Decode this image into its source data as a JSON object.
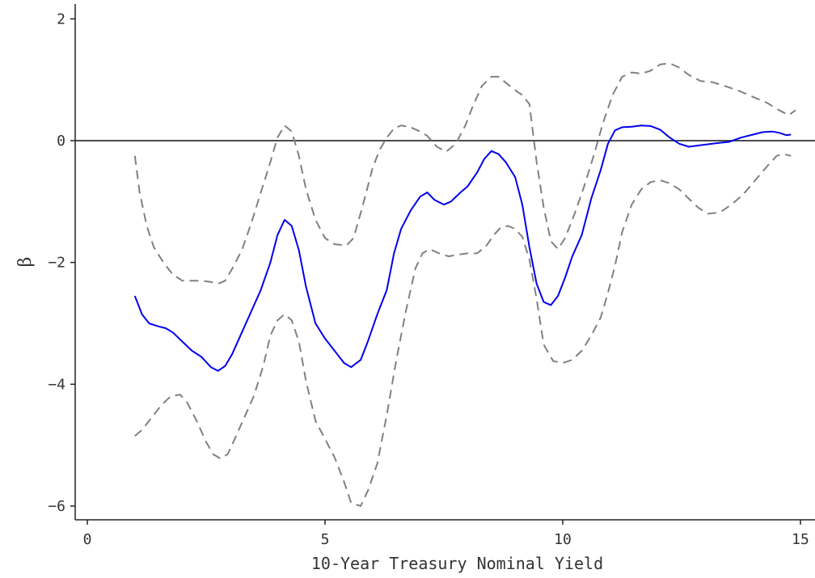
{
  "chart_data": {
    "type": "line",
    "title": "",
    "xlabel": "10-Year Treasury Nominal Yield",
    "ylabel": "β",
    "xlim": [
      0,
      15
    ],
    "ylim": [
      -6.1,
      2.2
    ],
    "xticks": [
      0,
      5,
      10,
      15
    ],
    "yticks": [
      -6,
      -4,
      -2,
      0,
      2
    ],
    "grid": false,
    "hline": 0,
    "series": [
      {
        "role": "estimate",
        "style": "solid",
        "color": "#0000ee",
        "x": [
          1.0,
          1.15,
          1.3,
          1.5,
          1.65,
          1.8,
          2.0,
          2.2,
          2.4,
          2.6,
          2.75,
          2.9,
          3.05,
          3.25,
          3.45,
          3.65,
          3.85,
          4.0,
          4.15,
          4.3,
          4.45,
          4.6,
          4.8,
          5.0,
          5.2,
          5.4,
          5.55,
          5.75,
          5.9,
          6.1,
          6.3,
          6.45,
          6.6,
          6.8,
          7.0,
          7.15,
          7.3,
          7.5,
          7.65,
          7.85,
          8.0,
          8.2,
          8.35,
          8.5,
          8.65,
          8.8,
          9.0,
          9.15,
          9.3,
          9.45,
          9.6,
          9.75,
          9.9,
          10.05,
          10.2,
          10.4,
          10.6,
          10.8,
          10.95,
          11.1,
          11.25,
          11.45,
          11.65,
          11.85,
          12.05,
          12.25,
          12.45,
          12.65,
          12.85,
          13.05,
          13.25,
          13.5,
          13.75,
          14.0,
          14.2,
          14.4,
          14.55,
          14.7,
          14.8
        ],
        "y": [
          -2.55,
          -2.85,
          -3.0,
          -3.05,
          -3.08,
          -3.15,
          -3.3,
          -3.45,
          -3.55,
          -3.72,
          -3.78,
          -3.7,
          -3.5,
          -3.15,
          -2.8,
          -2.45,
          -2.0,
          -1.55,
          -1.3,
          -1.4,
          -1.8,
          -2.4,
          -3.0,
          -3.25,
          -3.45,
          -3.65,
          -3.72,
          -3.6,
          -3.3,
          -2.85,
          -2.45,
          -1.85,
          -1.45,
          -1.15,
          -0.92,
          -0.85,
          -0.97,
          -1.05,
          -1.0,
          -0.85,
          -0.75,
          -0.52,
          -0.3,
          -0.17,
          -0.22,
          -0.35,
          -0.6,
          -1.05,
          -1.75,
          -2.35,
          -2.65,
          -2.7,
          -2.55,
          -2.25,
          -1.9,
          -1.55,
          -0.95,
          -0.48,
          -0.05,
          0.17,
          0.22,
          0.23,
          0.25,
          0.24,
          0.18,
          0.05,
          -0.05,
          -0.1,
          -0.08,
          -0.06,
          -0.04,
          -0.02,
          0.05,
          0.1,
          0.14,
          0.15,
          0.13,
          0.09,
          0.1
        ]
      },
      {
        "role": "upper bound",
        "style": "dashed",
        "color": "#808080",
        "x": [
          1.0,
          1.1,
          1.25,
          1.4,
          1.6,
          1.8,
          2.0,
          2.2,
          2.4,
          2.6,
          2.75,
          2.9,
          3.05,
          3.25,
          3.45,
          3.65,
          3.85,
          4.0,
          4.15,
          4.3,
          4.45,
          4.6,
          4.8,
          5.0,
          5.2,
          5.45,
          5.6,
          5.8,
          6.0,
          6.15,
          6.3,
          6.45,
          6.6,
          6.8,
          7.0,
          7.15,
          7.35,
          7.55,
          7.75,
          7.95,
          8.1,
          8.3,
          8.5,
          8.65,
          8.85,
          9.05,
          9.15,
          9.3,
          9.45,
          9.6,
          9.75,
          9.9,
          10.05,
          10.25,
          10.45,
          10.65,
          10.85,
          11.05,
          11.25,
          11.45,
          11.65,
          11.85,
          12.05,
          12.25,
          12.45,
          12.65,
          12.9,
          13.15,
          13.4,
          13.7,
          14.0,
          14.3,
          14.55,
          14.75,
          14.9
        ],
        "y": [
          -0.25,
          -0.85,
          -1.4,
          -1.75,
          -2.0,
          -2.2,
          -2.3,
          -2.3,
          -2.3,
          -2.32,
          -2.35,
          -2.3,
          -2.1,
          -1.8,
          -1.35,
          -0.85,
          -0.35,
          0.05,
          0.25,
          0.15,
          -0.25,
          -0.8,
          -1.3,
          -1.6,
          -1.7,
          -1.72,
          -1.6,
          -1.05,
          -0.45,
          -0.15,
          0.05,
          0.2,
          0.25,
          0.22,
          0.15,
          0.08,
          -0.1,
          -0.18,
          -0.05,
          0.25,
          0.55,
          0.9,
          1.05,
          1.05,
          0.92,
          0.8,
          0.75,
          0.6,
          -0.35,
          -1.1,
          -1.65,
          -1.78,
          -1.6,
          -1.2,
          -0.75,
          -0.25,
          0.3,
          0.75,
          1.05,
          1.12,
          1.1,
          1.15,
          1.25,
          1.27,
          1.2,
          1.08,
          0.98,
          0.96,
          0.9,
          0.82,
          0.72,
          0.62,
          0.5,
          0.42,
          0.5
        ]
      },
      {
        "role": "lower bound",
        "style": "dashed",
        "color": "#808080",
        "x": [
          1.0,
          1.15,
          1.35,
          1.55,
          1.75,
          1.95,
          2.1,
          2.3,
          2.5,
          2.65,
          2.8,
          2.95,
          3.1,
          3.3,
          3.5,
          3.7,
          3.85,
          4.0,
          4.15,
          4.3,
          4.45,
          4.6,
          4.8,
          5.0,
          5.2,
          5.4,
          5.55,
          5.75,
          5.9,
          6.1,
          6.3,
          6.5,
          6.7,
          6.9,
          7.05,
          7.2,
          7.4,
          7.6,
          7.8,
          8.0,
          8.2,
          8.4,
          8.55,
          8.7,
          8.85,
          9.0,
          9.15,
          9.3,
          9.45,
          9.6,
          9.8,
          10.0,
          10.2,
          10.4,
          10.6,
          10.8,
          10.95,
          11.1,
          11.25,
          11.45,
          11.65,
          11.85,
          12.05,
          12.25,
          12.45,
          12.65,
          12.85,
          13.05,
          13.3,
          13.55,
          13.8,
          14.05,
          14.3,
          14.5,
          14.65,
          14.8
        ],
        "y": [
          -4.85,
          -4.75,
          -4.55,
          -4.35,
          -4.2,
          -4.17,
          -4.3,
          -4.6,
          -4.95,
          -5.15,
          -5.22,
          -5.15,
          -4.9,
          -4.55,
          -4.2,
          -3.7,
          -3.2,
          -2.95,
          -2.85,
          -2.95,
          -3.3,
          -3.95,
          -4.6,
          -4.9,
          -5.2,
          -5.6,
          -5.95,
          -6.0,
          -5.75,
          -5.3,
          -4.5,
          -3.6,
          -2.8,
          -2.1,
          -1.85,
          -1.78,
          -1.85,
          -1.9,
          -1.87,
          -1.85,
          -1.85,
          -1.72,
          -1.55,
          -1.42,
          -1.4,
          -1.45,
          -1.58,
          -1.95,
          -2.6,
          -3.35,
          -3.62,
          -3.65,
          -3.6,
          -3.45,
          -3.2,
          -2.9,
          -2.5,
          -2.05,
          -1.5,
          -1.05,
          -0.8,
          -0.68,
          -0.65,
          -0.7,
          -0.8,
          -0.95,
          -1.1,
          -1.2,
          -1.18,
          -1.05,
          -0.88,
          -0.65,
          -0.42,
          -0.25,
          -0.22,
          -0.25
        ]
      }
    ]
  }
}
